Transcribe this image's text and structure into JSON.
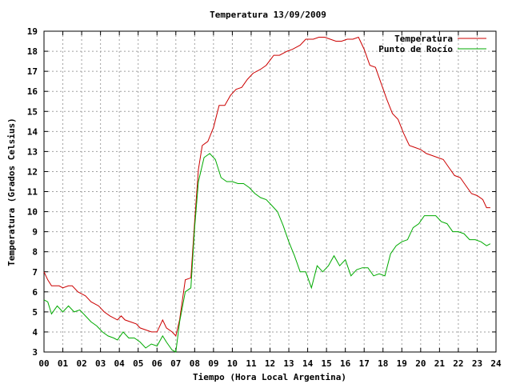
{
  "chart_data": {
    "type": "line",
    "title": "Temperatura 13/09/2009",
    "xlabel": "Tiempo (Hora Local Argentina)",
    "ylabel": "Temperatura (Grados Celsius)",
    "xlim": [
      0,
      24
    ],
    "ylim": [
      3,
      19
    ],
    "x_ticks": [
      "00",
      "01",
      "02",
      "03",
      "04",
      "05",
      "06",
      "07",
      "08",
      "09",
      "10",
      "11",
      "12",
      "13",
      "14",
      "15",
      "16",
      "17",
      "18",
      "19",
      "20",
      "21",
      "22",
      "23",
      "24"
    ],
    "y_ticks": [
      3,
      4,
      5,
      6,
      7,
      8,
      9,
      10,
      11,
      12,
      13,
      14,
      15,
      16,
      17,
      18,
      19
    ],
    "grid": true,
    "legend_position": "top-right",
    "series": [
      {
        "name": "Temperatura",
        "color": "#cc0000",
        "points": [
          [
            0.0,
            7.0
          ],
          [
            0.2,
            6.6
          ],
          [
            0.4,
            6.3
          ],
          [
            0.8,
            6.3
          ],
          [
            1.0,
            6.2
          ],
          [
            1.3,
            6.3
          ],
          [
            1.5,
            6.3
          ],
          [
            1.8,
            6.0
          ],
          [
            2.0,
            5.9
          ],
          [
            2.2,
            5.8
          ],
          [
            2.5,
            5.5
          ],
          [
            2.9,
            5.3
          ],
          [
            3.2,
            5.0
          ],
          [
            3.5,
            4.8
          ],
          [
            3.9,
            4.6
          ],
          [
            4.1,
            4.8
          ],
          [
            4.3,
            4.6
          ],
          [
            4.6,
            4.5
          ],
          [
            4.9,
            4.4
          ],
          [
            5.1,
            4.2
          ],
          [
            5.4,
            4.1
          ],
          [
            5.7,
            4.0
          ],
          [
            6.0,
            4.0
          ],
          [
            6.3,
            4.6
          ],
          [
            6.5,
            4.2
          ],
          [
            6.8,
            4.0
          ],
          [
            7.0,
            3.8
          ],
          [
            7.2,
            4.6
          ],
          [
            7.5,
            6.6
          ],
          [
            7.8,
            6.7
          ],
          [
            8.0,
            9.5
          ],
          [
            8.2,
            12.1
          ],
          [
            8.4,
            13.3
          ],
          [
            8.7,
            13.5
          ],
          [
            9.0,
            14.2
          ],
          [
            9.3,
            15.3
          ],
          [
            9.6,
            15.3
          ],
          [
            9.9,
            15.8
          ],
          [
            10.2,
            16.1
          ],
          [
            10.5,
            16.2
          ],
          [
            10.8,
            16.6
          ],
          [
            11.1,
            16.9
          ],
          [
            11.5,
            17.1
          ],
          [
            11.8,
            17.3
          ],
          [
            12.2,
            17.8
          ],
          [
            12.5,
            17.8
          ],
          [
            12.9,
            18.0
          ],
          [
            13.2,
            18.1
          ],
          [
            13.6,
            18.3
          ],
          [
            13.9,
            18.6
          ],
          [
            14.3,
            18.6
          ],
          [
            14.6,
            18.7
          ],
          [
            14.9,
            18.7
          ],
          [
            15.2,
            18.6
          ],
          [
            15.5,
            18.5
          ],
          [
            15.8,
            18.5
          ],
          [
            16.1,
            18.6
          ],
          [
            16.4,
            18.6
          ],
          [
            16.7,
            18.7
          ],
          [
            17.0,
            18.1
          ],
          [
            17.3,
            17.3
          ],
          [
            17.6,
            17.2
          ],
          [
            17.9,
            16.4
          ],
          [
            18.2,
            15.6
          ],
          [
            18.5,
            14.9
          ],
          [
            18.8,
            14.6
          ],
          [
            19.1,
            13.9
          ],
          [
            19.4,
            13.3
          ],
          [
            19.7,
            13.2
          ],
          [
            20.0,
            13.1
          ],
          [
            20.3,
            12.9
          ],
          [
            20.6,
            12.8
          ],
          [
            20.9,
            12.7
          ],
          [
            21.2,
            12.6
          ],
          [
            21.5,
            12.2
          ],
          [
            21.8,
            11.8
          ],
          [
            22.1,
            11.7
          ],
          [
            22.4,
            11.3
          ],
          [
            22.7,
            10.9
          ],
          [
            23.0,
            10.8
          ],
          [
            23.3,
            10.6
          ],
          [
            23.5,
            10.2
          ],
          [
            23.7,
            10.2
          ]
        ]
      },
      {
        "name": "Punto de Rocío",
        "color": "#00aa00",
        "points": [
          [
            0.0,
            5.6
          ],
          [
            0.2,
            5.5
          ],
          [
            0.4,
            4.9
          ],
          [
            0.7,
            5.3
          ],
          [
            1.0,
            5.0
          ],
          [
            1.3,
            5.3
          ],
          [
            1.6,
            5.0
          ],
          [
            1.9,
            5.1
          ],
          [
            2.2,
            4.8
          ],
          [
            2.5,
            4.5
          ],
          [
            2.8,
            4.3
          ],
          [
            3.1,
            4.0
          ],
          [
            3.4,
            3.8
          ],
          [
            3.7,
            3.7
          ],
          [
            3.9,
            3.6
          ],
          [
            4.2,
            4.0
          ],
          [
            4.5,
            3.7
          ],
          [
            4.8,
            3.7
          ],
          [
            5.1,
            3.5
          ],
          [
            5.4,
            3.2
          ],
          [
            5.7,
            3.4
          ],
          [
            6.0,
            3.3
          ],
          [
            6.3,
            3.8
          ],
          [
            6.5,
            3.5
          ],
          [
            6.8,
            3.1
          ],
          [
            7.0,
            3.0
          ],
          [
            7.2,
            4.5
          ],
          [
            7.5,
            6.0
          ],
          [
            7.8,
            6.2
          ],
          [
            8.0,
            9.2
          ],
          [
            8.2,
            11.5
          ],
          [
            8.5,
            12.7
          ],
          [
            8.8,
            12.9
          ],
          [
            9.1,
            12.6
          ],
          [
            9.4,
            11.7
          ],
          [
            9.7,
            11.5
          ],
          [
            10.0,
            11.5
          ],
          [
            10.3,
            11.4
          ],
          [
            10.6,
            11.4
          ],
          [
            10.9,
            11.2
          ],
          [
            11.2,
            10.9
          ],
          [
            11.5,
            10.7
          ],
          [
            11.8,
            10.6
          ],
          [
            12.1,
            10.3
          ],
          [
            12.4,
            10.0
          ],
          [
            12.7,
            9.3
          ],
          [
            13.0,
            8.5
          ],
          [
            13.3,
            7.8
          ],
          [
            13.6,
            7.0
          ],
          [
            13.9,
            7.0
          ],
          [
            14.2,
            6.2
          ],
          [
            14.5,
            7.3
          ],
          [
            14.8,
            7.0
          ],
          [
            15.1,
            7.3
          ],
          [
            15.4,
            7.8
          ],
          [
            15.7,
            7.3
          ],
          [
            16.0,
            7.6
          ],
          [
            16.3,
            6.8
          ],
          [
            16.6,
            7.1
          ],
          [
            16.9,
            7.2
          ],
          [
            17.2,
            7.2
          ],
          [
            17.5,
            6.8
          ],
          [
            17.8,
            6.9
          ],
          [
            18.1,
            6.8
          ],
          [
            18.4,
            7.9
          ],
          [
            18.7,
            8.3
          ],
          [
            19.0,
            8.5
          ],
          [
            19.3,
            8.6
          ],
          [
            19.6,
            9.2
          ],
          [
            19.9,
            9.4
          ],
          [
            20.2,
            9.8
          ],
          [
            20.5,
            9.8
          ],
          [
            20.8,
            9.8
          ],
          [
            21.1,
            9.5
          ],
          [
            21.4,
            9.4
          ],
          [
            21.7,
            9.0
          ],
          [
            22.0,
            9.0
          ],
          [
            22.3,
            8.9
          ],
          [
            22.6,
            8.6
          ],
          [
            22.9,
            8.6
          ],
          [
            23.2,
            8.5
          ],
          [
            23.5,
            8.3
          ],
          [
            23.7,
            8.4
          ]
        ]
      }
    ]
  }
}
